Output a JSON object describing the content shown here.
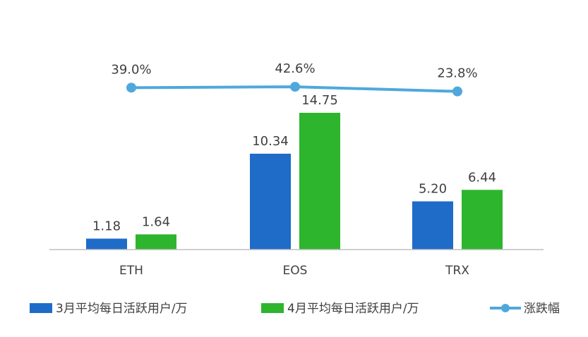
{
  "chart_data": {
    "type": "bar",
    "categories": [
      "ETH",
      "EOS",
      "TRX"
    ],
    "series": [
      {
        "name": "3月平均每日活跃用户/万",
        "values": [
          1.18,
          10.34,
          5.2
        ],
        "labels": [
          "1.18",
          "10.34",
          "5.20"
        ],
        "color": "#1F6BC8"
      },
      {
        "name": "4月平均每日活跃用户/万",
        "values": [
          1.64,
          14.75,
          6.44
        ],
        "labels": [
          "1.64",
          "14.75",
          "6.44"
        ],
        "color": "#2DB52D"
      }
    ],
    "line_series": {
      "name": "涨跌幅",
      "values": [
        39.0,
        42.6,
        23.8
      ],
      "labels": [
        "39.0%",
        "42.6%",
        "23.8%"
      ],
      "color": "#4FA8DB"
    },
    "title": "",
    "xlabel": "",
    "ylabel": "",
    "ylim": [
      0,
      15.5
    ],
    "grid": false,
    "legend_position": "bottom"
  }
}
